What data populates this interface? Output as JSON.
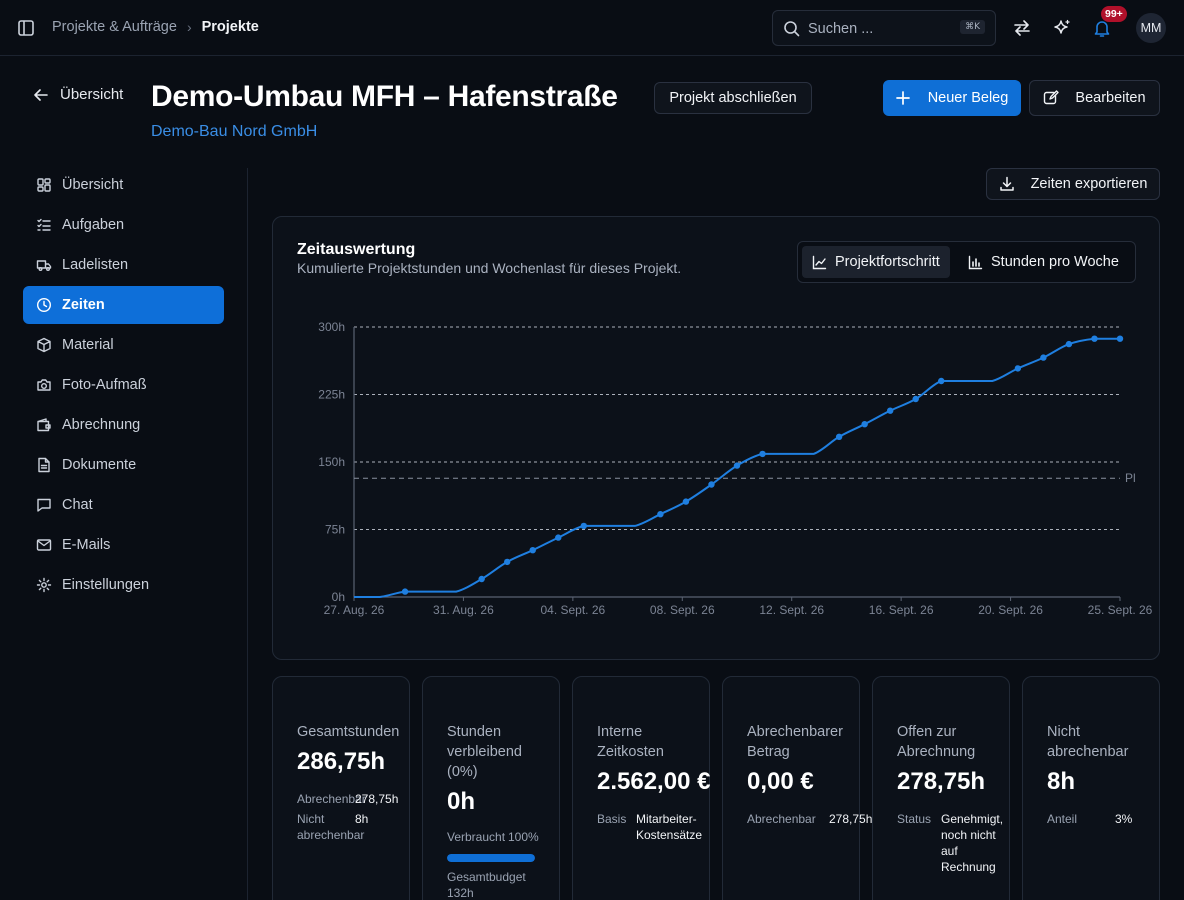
{
  "topbar": {
    "breadcrumb": [
      "Projekte & Aufträge",
      "Projekte"
    ],
    "search_placeholder": "Suchen ...",
    "search_shortcut": "⌘K",
    "notification_count": "99+",
    "user_initials": "MM"
  },
  "header": {
    "back_label": "Übersicht",
    "title": "Demo-Umbau MFH – Hafenstraße",
    "customer": "Demo-Bau Nord GmbH",
    "close_project_label": "Projekt abschließen",
    "new_document_label": "Neuer Beleg",
    "edit_label": "Bearbeiten"
  },
  "sidebar": {
    "items": [
      {
        "label": "Übersicht",
        "icon": "dashboard-icon",
        "active": false
      },
      {
        "label": "Aufgaben",
        "icon": "task-list-icon",
        "active": false
      },
      {
        "label": "Ladelisten",
        "icon": "truck-icon",
        "active": false
      },
      {
        "label": "Zeiten",
        "icon": "clock-icon",
        "active": true
      },
      {
        "label": "Material",
        "icon": "box-icon",
        "active": false
      },
      {
        "label": "Foto-Aufmaß",
        "icon": "camera-icon",
        "active": false
      },
      {
        "label": "Abrechnung",
        "icon": "wallet-icon",
        "active": false
      },
      {
        "label": "Dokumente",
        "icon": "document-icon",
        "active": false
      },
      {
        "label": "Chat",
        "icon": "chat-icon",
        "active": false
      },
      {
        "label": "E-Mails",
        "icon": "mail-icon",
        "active": false
      },
      {
        "label": "Einstellungen",
        "icon": "gear-icon",
        "active": false
      }
    ]
  },
  "export_label": "Zeiten exportieren",
  "chart_card": {
    "title": "Zeitauswertung",
    "subtitle": "Kumulierte Projektstunden und Wochenlast für dieses Projekt.",
    "tabs": [
      "Projektfortschritt",
      "Stunden pro Woche"
    ],
    "active_tab": 0
  },
  "chart_data": {
    "type": "line",
    "ylim": [
      0,
      300
    ],
    "yticks": [
      "0h",
      "75h",
      "150h",
      "225h",
      "300h"
    ],
    "xticks": [
      "27. Aug. 26",
      "31. Aug. 26",
      "04. Sept. 26",
      "08. Sept. 26",
      "12. Sept. 26",
      "16. Sept. 26",
      "20. Sept. 26",
      "25. Sept. 26"
    ],
    "plan_line": {
      "label": "Pl",
      "value": 132
    },
    "color": "#1f7fe0",
    "series": [
      {
        "x": [
          "26. Aug. 26",
          "27. Aug. 26",
          "28. Aug. 26",
          "29. Aug. 26",
          "30. Aug. 26",
          "31. Aug. 26",
          "01. Sept. 26",
          "02. Sept. 26",
          "03. Sept. 26",
          "04. Sept. 26",
          "05. Sept. 26",
          "06. Sept. 26",
          "07. Sept. 26",
          "08. Sept. 26",
          "09. Sept. 26",
          "10. Sept. 26",
          "11. Sept. 26",
          "12. Sept. 26",
          "13. Sept. 26",
          "14. Sept. 26",
          "15. Sept. 26",
          "16. Sept. 26",
          "17. Sept. 26",
          "18. Sept. 26",
          "19. Sept. 26",
          "20. Sept. 26",
          "21. Sept. 26",
          "22. Sept. 26",
          "23. Sept. 26",
          "24. Sept. 26",
          "25. Sept. 26"
        ],
        "values": [
          0,
          0,
          6,
          6,
          6,
          20,
          39,
          52,
          66,
          79,
          79,
          79,
          92,
          106,
          125,
          146,
          159,
          159,
          159,
          178,
          192,
          207,
          220,
          240,
          240,
          240,
          254,
          266,
          281,
          287,
          287
        ],
        "markers": [
          false,
          false,
          true,
          false,
          false,
          true,
          true,
          true,
          true,
          true,
          false,
          false,
          true,
          true,
          true,
          true,
          true,
          false,
          false,
          true,
          true,
          true,
          true,
          true,
          false,
          false,
          true,
          true,
          true,
          true,
          true
        ]
      }
    ]
  },
  "stats": [
    {
      "label": "Gesamtstunden",
      "value": "286,75h",
      "details": [
        {
          "k": "Abrechenbar",
          "v": "278,75h"
        },
        {
          "k": "Nicht abrechenbar",
          "v": "8h"
        }
      ]
    },
    {
      "label": "Stunden verbleibend (0%)",
      "value": "0h",
      "used_label": "Verbraucht",
      "used_value": "100%",
      "progress": 1.0,
      "budget_label": "Gesamtbudget 132h"
    },
    {
      "label": "Interne Zeitkosten",
      "value": "2.562,00 €",
      "details": [
        {
          "k": "Basis",
          "v": "Mitarbeiter-\nKostensätze"
        }
      ]
    },
    {
      "label": "Abrechenbarer Betrag",
      "value": "0,00 €",
      "details": [
        {
          "k": "Abrechenbar",
          "v": "278,75h"
        }
      ]
    },
    {
      "label": "Offen zur Abrechnung",
      "value": "278,75h",
      "details": [
        {
          "k": "Status",
          "v": "Genehmigt,\nnoch nicht\nauf\nRechnung"
        }
      ]
    },
    {
      "label": "Nicht abrechenbar",
      "value": "8h",
      "details": [
        {
          "k": "Anteil",
          "v": "3%"
        }
      ]
    }
  ]
}
